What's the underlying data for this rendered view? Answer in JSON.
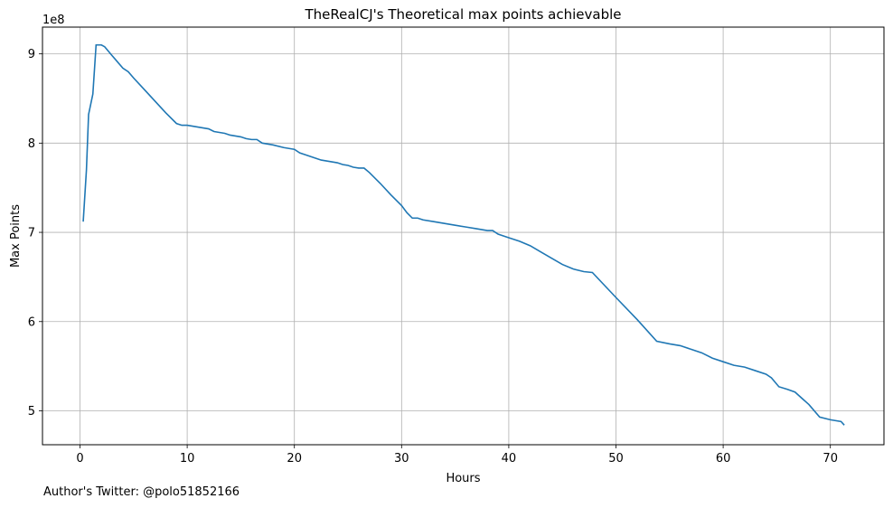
{
  "chart_data": {
    "type": "line",
    "title": "TheRealCJ's Theoretical max points achievable",
    "xlabel": "Hours",
    "ylabel": "Max Points",
    "y_offset_label": "1e8",
    "xlim": [
      -3.5,
      75
    ],
    "ylim": [
      4.62,
      9.3
    ],
    "x_ticks": [
      0,
      10,
      20,
      30,
      40,
      50,
      60,
      70
    ],
    "x_tick_labels": [
      "0",
      "10",
      "20",
      "30",
      "40",
      "50",
      "60",
      "70"
    ],
    "y_ticks": [
      5,
      6,
      7,
      8,
      9
    ],
    "y_tick_labels": [
      "5",
      "6",
      "7",
      "8",
      "9"
    ],
    "grid": true,
    "line_color": "#1f77b4",
    "series": [
      {
        "x": [
          0.3,
          0.6,
          0.8,
          1.2,
          1.5,
          2.0,
          2.3,
          3.0,
          4.0,
          4.5,
          5.0,
          6.0,
          7.0,
          8.0,
          9.0,
          9.5,
          10.0,
          10.5,
          11.0,
          11.5,
          12.0,
          12.5,
          13.0,
          13.5,
          14.0,
          14.5,
          15.0,
          15.5,
          16.0,
          16.5,
          17.0,
          17.5,
          18.0,
          19.0,
          19.5,
          20.0,
          20.5,
          21.0,
          21.5,
          22.0,
          22.5,
          23.0,
          23.5,
          24.0,
          24.5,
          25.0,
          25.5,
          26.0,
          26.5,
          27.0,
          28.0,
          29.0,
          30.0,
          30.5,
          31.0,
          31.5,
          32.0,
          33.0,
          34.0,
          35.0,
          36.0,
          37.0,
          38.0,
          38.5,
          39.0,
          40.0,
          41.0,
          42.0,
          43.0,
          44.0,
          45.0,
          46.0,
          47.0,
          47.8,
          50.0,
          52.0,
          53.8,
          55.0,
          56.0,
          57.0,
          58.0,
          59.0,
          60.0,
          61.0,
          62.0,
          63.0,
          64.0,
          64.5,
          65.2,
          66.0,
          66.7,
          68.0,
          69.0,
          70.0,
          71.0,
          71.3
        ],
        "y": [
          7.12,
          7.7,
          8.32,
          8.55,
          9.1,
          9.1,
          9.08,
          8.98,
          8.84,
          8.8,
          8.73,
          8.6,
          8.47,
          8.34,
          8.22,
          8.2,
          8.2,
          8.19,
          8.18,
          8.17,
          8.16,
          8.13,
          8.12,
          8.11,
          8.09,
          8.08,
          8.07,
          8.05,
          8.04,
          8.04,
          8.0,
          7.99,
          7.98,
          7.95,
          7.94,
          7.93,
          7.89,
          7.87,
          7.85,
          7.83,
          7.81,
          7.8,
          7.79,
          7.78,
          7.76,
          7.75,
          7.73,
          7.72,
          7.72,
          7.67,
          7.55,
          7.42,
          7.3,
          7.22,
          7.16,
          7.16,
          7.14,
          7.12,
          7.1,
          7.08,
          7.06,
          7.04,
          7.02,
          7.02,
          6.98,
          6.94,
          6.9,
          6.85,
          6.78,
          6.71,
          6.64,
          6.59,
          6.56,
          6.55,
          6.27,
          6.02,
          5.78,
          5.75,
          5.73,
          5.69,
          5.65,
          5.59,
          5.55,
          5.51,
          5.49,
          5.45,
          5.41,
          5.37,
          5.27,
          5.24,
          5.21,
          5.07,
          4.93,
          4.9,
          4.88,
          4.84
        ]
      }
    ]
  },
  "footer": {
    "text": "Author's Twitter: @polo51852166"
  }
}
